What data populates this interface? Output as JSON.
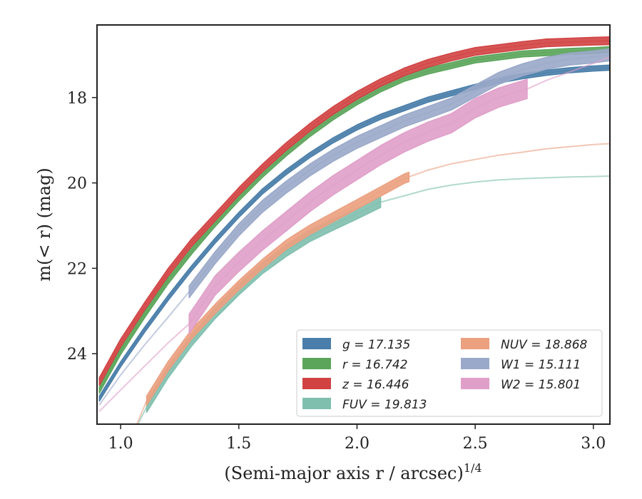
{
  "chart_data": {
    "type": "line",
    "xlabel": "(Semi-major axis r / arcsec)",
    "xlabel_sup": "1/4",
    "ylabel": "m(< r) (mag)",
    "xlim": [
      0.9,
      3.07
    ],
    "ylim": [
      25.65,
      16.3
    ],
    "y_inverted": true,
    "xticks": [
      1.0,
      1.5,
      2.0,
      2.5,
      3.0
    ],
    "xtick_labels": [
      "1.0",
      "1.5",
      "2.0",
      "2.5",
      "3.0"
    ],
    "yticks": [
      18,
      20,
      22,
      24
    ],
    "ytick_labels": [
      "18",
      "20",
      "22",
      "24"
    ],
    "grid": false,
    "legend_position": "bottom-right",
    "legend_columns": 2,
    "series": [
      {
        "name": "g = 17.135",
        "color": "#4a7eaa",
        "width": 0.12,
        "x_end_thick": 3.07,
        "points": [
          [
            0.91,
            25.05
          ],
          [
            1.0,
            24.25
          ],
          [
            1.1,
            23.45
          ],
          [
            1.2,
            22.7
          ],
          [
            1.3,
            22.0
          ],
          [
            1.4,
            21.35
          ],
          [
            1.5,
            20.75
          ],
          [
            1.6,
            20.2
          ],
          [
            1.7,
            19.75
          ],
          [
            1.8,
            19.35
          ],
          [
            1.9,
            19.0
          ],
          [
            2.0,
            18.7
          ],
          [
            2.1,
            18.45
          ],
          [
            2.2,
            18.25
          ],
          [
            2.3,
            18.05
          ],
          [
            2.4,
            17.9
          ],
          [
            2.5,
            17.75
          ],
          [
            2.6,
            17.6
          ],
          [
            2.7,
            17.5
          ],
          [
            2.8,
            17.42
          ],
          [
            2.9,
            17.36
          ],
          [
            3.0,
            17.32
          ],
          [
            3.07,
            17.3
          ]
        ]
      },
      {
        "name": "r = 16.742",
        "color": "#5ba55b",
        "width": 0.14,
        "x_end_thick": 3.07,
        "points": [
          [
            0.91,
            24.85
          ],
          [
            1.0,
            23.95
          ],
          [
            1.1,
            23.1
          ],
          [
            1.2,
            22.3
          ],
          [
            1.3,
            21.6
          ],
          [
            1.4,
            20.95
          ],
          [
            1.5,
            20.35
          ],
          [
            1.6,
            19.8
          ],
          [
            1.7,
            19.3
          ],
          [
            1.8,
            18.85
          ],
          [
            1.9,
            18.45
          ],
          [
            2.0,
            18.1
          ],
          [
            2.1,
            17.8
          ],
          [
            2.2,
            17.55
          ],
          [
            2.3,
            17.38
          ],
          [
            2.4,
            17.25
          ],
          [
            2.5,
            17.12
          ],
          [
            2.6,
            17.05
          ],
          [
            2.7,
            16.98
          ],
          [
            2.8,
            16.95
          ],
          [
            2.9,
            16.92
          ],
          [
            3.0,
            16.9
          ],
          [
            3.07,
            16.88
          ]
        ]
      },
      {
        "name": "z = 16.446",
        "color": "#d14343",
        "width": 0.18,
        "x_end_thick": 3.07,
        "points": [
          [
            0.91,
            24.65
          ],
          [
            1.0,
            23.75
          ],
          [
            1.1,
            22.9
          ],
          [
            1.2,
            22.1
          ],
          [
            1.3,
            21.4
          ],
          [
            1.4,
            20.8
          ],
          [
            1.5,
            20.2
          ],
          [
            1.6,
            19.65
          ],
          [
            1.7,
            19.15
          ],
          [
            1.8,
            18.7
          ],
          [
            1.9,
            18.3
          ],
          [
            2.0,
            17.95
          ],
          [
            2.1,
            17.65
          ],
          [
            2.2,
            17.4
          ],
          [
            2.3,
            17.2
          ],
          [
            2.4,
            17.05
          ],
          [
            2.5,
            16.92
          ],
          [
            2.6,
            16.85
          ],
          [
            2.7,
            16.78
          ],
          [
            2.8,
            16.72
          ],
          [
            2.9,
            16.7
          ],
          [
            3.0,
            16.68
          ],
          [
            3.07,
            16.67
          ]
        ]
      },
      {
        "name": "FUV = 19.813",
        "color": "#7fbfae",
        "width": 0.25,
        "x_start_thick": 1.11,
        "x_end_thick": 2.1,
        "points": [
          [
            1.05,
            25.9
          ],
          [
            1.11,
            25.25
          ],
          [
            1.2,
            24.45
          ],
          [
            1.3,
            23.7
          ],
          [
            1.4,
            23.05
          ],
          [
            1.5,
            22.5
          ],
          [
            1.6,
            22.0
          ],
          [
            1.7,
            21.6
          ],
          [
            1.8,
            21.25
          ],
          [
            1.9,
            20.98
          ],
          [
            2.0,
            20.72
          ],
          [
            2.1,
            20.45
          ],
          [
            2.2,
            20.3
          ],
          [
            2.3,
            20.15
          ],
          [
            2.4,
            20.05
          ],
          [
            2.5,
            19.98
          ],
          [
            2.6,
            19.93
          ],
          [
            2.7,
            19.9
          ],
          [
            2.8,
            19.88
          ],
          [
            2.9,
            19.86
          ],
          [
            3.0,
            19.85
          ],
          [
            3.07,
            19.84
          ]
        ]
      },
      {
        "name": "NUV = 18.868",
        "color": "#eba080",
        "width": 0.22,
        "x_start_thick": 1.11,
        "x_end_thick": 2.22,
        "points": [
          [
            1.05,
            25.9
          ],
          [
            1.11,
            25.1
          ],
          [
            1.2,
            24.3
          ],
          [
            1.3,
            23.55
          ],
          [
            1.4,
            22.95
          ],
          [
            1.5,
            22.4
          ],
          [
            1.6,
            21.9
          ],
          [
            1.7,
            21.45
          ],
          [
            1.8,
            21.1
          ],
          [
            1.9,
            20.8
          ],
          [
            2.0,
            20.5
          ],
          [
            2.1,
            20.2
          ],
          [
            2.2,
            19.9
          ],
          [
            2.3,
            19.7
          ],
          [
            2.4,
            19.55
          ],
          [
            2.5,
            19.45
          ],
          [
            2.6,
            19.35
          ],
          [
            2.7,
            19.28
          ],
          [
            2.8,
            19.2
          ],
          [
            2.9,
            19.15
          ],
          [
            3.0,
            19.1
          ],
          [
            3.07,
            19.08
          ]
        ]
      },
      {
        "name": "W1 = 15.111",
        "color": "#9aa9c9",
        "width": 0.28,
        "x_start_thick": 1.29,
        "x_end_thick": 3.07,
        "points": [
          [
            0.91,
            25.2
          ],
          [
            1.0,
            24.5
          ],
          [
            1.1,
            23.8
          ],
          [
            1.2,
            23.15
          ],
          [
            1.29,
            22.55
          ],
          [
            1.4,
            21.75
          ],
          [
            1.5,
            21.1
          ],
          [
            1.6,
            20.55
          ],
          [
            1.7,
            20.1
          ],
          [
            1.8,
            19.7
          ],
          [
            1.9,
            19.35
          ],
          [
            2.0,
            19.05
          ],
          [
            2.1,
            18.8
          ],
          [
            2.2,
            18.55
          ],
          [
            2.3,
            18.35
          ],
          [
            2.4,
            18.15
          ],
          [
            2.5,
            17.85
          ],
          [
            2.6,
            17.55
          ],
          [
            2.7,
            17.35
          ],
          [
            2.8,
            17.2
          ],
          [
            2.9,
            17.1
          ],
          [
            3.0,
            17.05
          ],
          [
            3.07,
            17.0
          ]
        ]
      },
      {
        "name": "W2 = 15.801",
        "color": "#e09fc9",
        "width": 0.45,
        "x_start_thick": 1.29,
        "x_end_thick": 2.72,
        "points": [
          [
            0.91,
            25.35
          ],
          [
            1.0,
            24.85
          ],
          [
            1.1,
            24.3
          ],
          [
            1.2,
            23.75
          ],
          [
            1.29,
            23.3
          ],
          [
            1.4,
            22.4
          ],
          [
            1.5,
            21.85
          ],
          [
            1.6,
            21.35
          ],
          [
            1.7,
            20.9
          ],
          [
            1.8,
            20.45
          ],
          [
            1.9,
            20.05
          ],
          [
            2.0,
            19.7
          ],
          [
            2.1,
            19.35
          ],
          [
            2.2,
            19.05
          ],
          [
            2.3,
            18.8
          ],
          [
            2.4,
            18.6
          ],
          [
            2.5,
            18.25
          ],
          [
            2.6,
            18.0
          ],
          [
            2.72,
            17.8
          ],
          [
            2.8,
            17.6
          ],
          [
            2.9,
            17.4
          ],
          [
            3.0,
            17.2
          ],
          [
            3.07,
            17.05
          ]
        ]
      }
    ],
    "legend_entries": [
      {
        "label": "g = 17.135",
        "color": "#4a7eaa"
      },
      {
        "label": "r = 16.742",
        "color": "#5ba55b"
      },
      {
        "label": "z = 16.446",
        "color": "#d14343"
      },
      {
        "label": "FUV = 19.813",
        "color": "#7fbfae"
      },
      {
        "label": "NUV = 18.868",
        "color": "#eba080"
      },
      {
        "label": "W1 = 15.111",
        "color": "#9aa9c9"
      },
      {
        "label": "W2 = 15.801",
        "color": "#e09fc9"
      }
    ]
  }
}
